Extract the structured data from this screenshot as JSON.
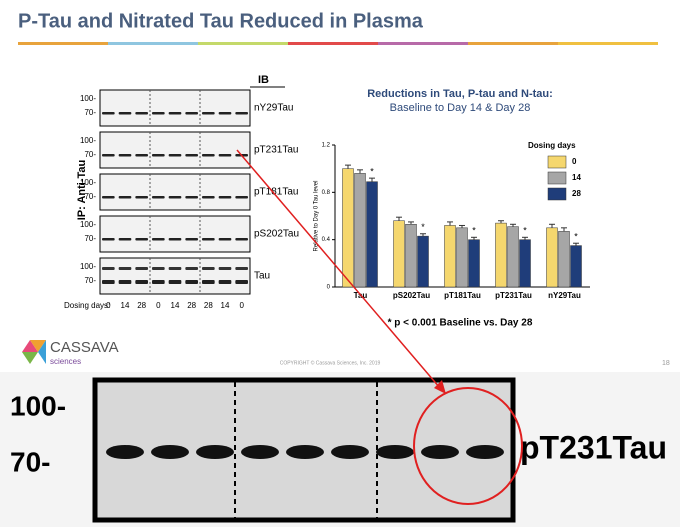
{
  "header": {
    "title": "P-Tau and Nitrated Tau Reduced in Plasma"
  },
  "blot": {
    "ib_label": "IB",
    "ip_label": "IP: Anti-Tau",
    "rows": [
      "nY29Tau",
      "pT231Tau",
      "pT181Tau",
      "pS202Tau",
      "Tau"
    ],
    "markers": [
      "100-",
      "70-"
    ],
    "lanes_label": "Dosing days:",
    "lanes": [
      "0",
      "14",
      "28",
      "0",
      "14",
      "28",
      "28",
      "14",
      "0"
    ]
  },
  "chart_data": {
    "type": "bar",
    "title": "Reductions in Tau, P-tau and N-tau:",
    "subtitle": "Baseline to Day 14 & Day 28",
    "y_label": "Relative to Day 0 Tau level",
    "categories": [
      "Tau",
      "pS202Tau",
      "pT181Tau",
      "pT231Tau",
      "nY29Tau"
    ],
    "series": [
      {
        "name": "0",
        "color": "#f5d76e",
        "values": [
          1.0,
          0.56,
          0.52,
          0.54,
          0.5
        ],
        "errors": [
          0.03,
          0.03,
          0.03,
          0.02,
          0.03
        ]
      },
      {
        "name": "14",
        "color": "#a6a6a6",
        "values": [
          0.96,
          0.53,
          0.5,
          0.51,
          0.47
        ],
        "errors": [
          0.03,
          0.02,
          0.02,
          0.02,
          0.03
        ]
      },
      {
        "name": "28",
        "color": "#1f3d7a",
        "values": [
          0.89,
          0.43,
          0.4,
          0.4,
          0.35
        ],
        "errors": [
          0.03,
          0.02,
          0.02,
          0.02,
          0.02
        ],
        "annotations": [
          "*",
          "*",
          "*",
          "*",
          "*"
        ]
      }
    ],
    "legend_title": "Dosing days",
    "legend_position": "upper right",
    "ylim": [
      0,
      1.2
    ],
    "yticks": [
      0,
      0.4,
      0.8,
      1.2
    ],
    "grid": false,
    "footnote": "* p < 0.001 Baseline vs. Day 28"
  },
  "footer": {
    "logo": "CASSAVA",
    "logo_sub": "sciences",
    "copyright": "COPYRIGHT © Cassava Sciences, Inc. 2019",
    "page": "18"
  },
  "zoom": {
    "markers": [
      "100-",
      "70-"
    ],
    "label": "pT231Tau"
  }
}
